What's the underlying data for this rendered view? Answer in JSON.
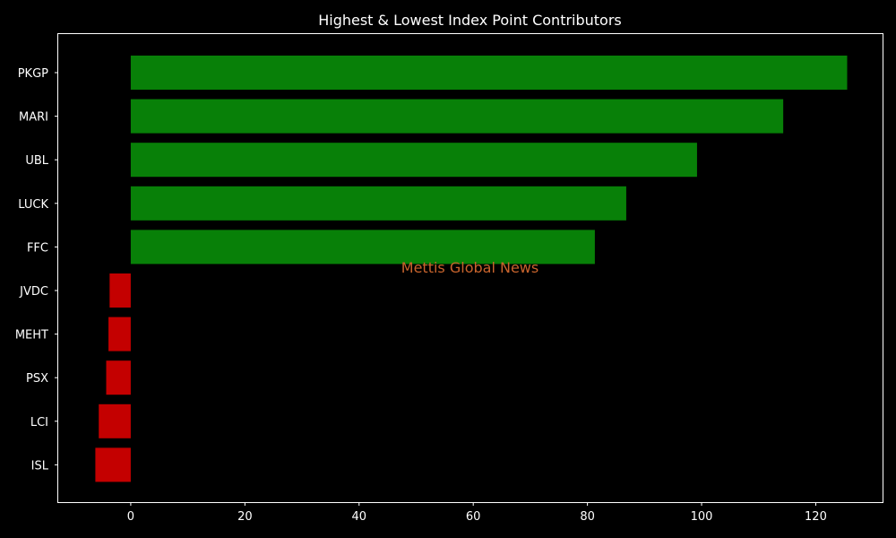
{
  "chart_data": {
    "type": "bar",
    "orientation": "horizontal",
    "title": "Highest & Lowest Index Point Contributors",
    "xlabel": "",
    "ylabel": "",
    "categories": [
      "PKGP",
      "MARI",
      "UBL",
      "LUCK",
      "FFC",
      "JVDC",
      "MEHT",
      "PSX",
      "LCI",
      "ISL"
    ],
    "values": [
      125.5,
      114.3,
      99.2,
      86.8,
      81.3,
      -3.7,
      -3.9,
      -4.3,
      -5.6,
      -6.2
    ],
    "xlim": [
      -12.7,
      131.7
    ],
    "xticks": [
      0,
      20,
      40,
      60,
      80,
      100,
      120
    ],
    "xtick_labels": [
      "0",
      "20",
      "40",
      "60",
      "80",
      "100",
      "120"
    ],
    "grid": false,
    "legend": "none"
  },
  "colors": {
    "background": "#000000",
    "positive": "#088008",
    "negative": "#c40000",
    "axis": "#ffffff",
    "text": "#ffffff",
    "watermark": "#c8642d"
  },
  "watermark": {
    "text": "Mettis Global News"
  }
}
